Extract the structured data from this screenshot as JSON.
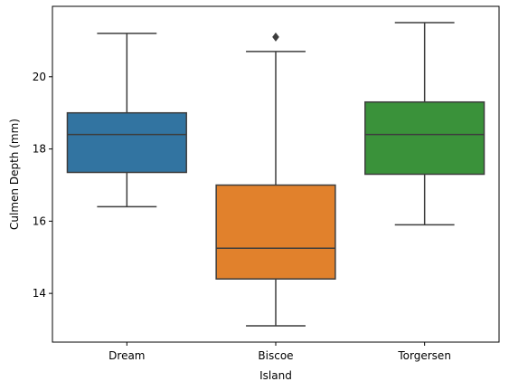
{
  "chart_data": {
    "type": "box",
    "title": "",
    "xlabel": "Island",
    "ylabel": "Culmen Depth (mm)",
    "categories": [
      "Dream",
      "Biscoe",
      "Torgersen"
    ],
    "ylim": [
      12.65,
      21.95
    ],
    "yticks": [
      14,
      16,
      18,
      20
    ],
    "ytick_labels": [
      "14",
      "16",
      "18",
      "20"
    ],
    "grid": false,
    "legend": "none",
    "boxes": [
      {
        "category": "Dream",
        "whisker_low": 16.4,
        "q1": 17.35,
        "median": 18.4,
        "q3": 19.0,
        "whisker_high": 21.2,
        "outliers": [],
        "color": "#3274a1"
      },
      {
        "category": "Biscoe",
        "whisker_low": 13.1,
        "q1": 14.4,
        "median": 15.25,
        "q3": 17.0,
        "whisker_high": 20.7,
        "outliers": [
          21.1
        ],
        "color": "#e1812c"
      },
      {
        "category": "Torgersen",
        "whisker_low": 15.9,
        "q1": 17.3,
        "median": 18.4,
        "q3": 19.3,
        "whisker_high": 21.5,
        "outliers": [],
        "color": "#3a923a"
      }
    ],
    "line_color": "#3d3d3d"
  }
}
